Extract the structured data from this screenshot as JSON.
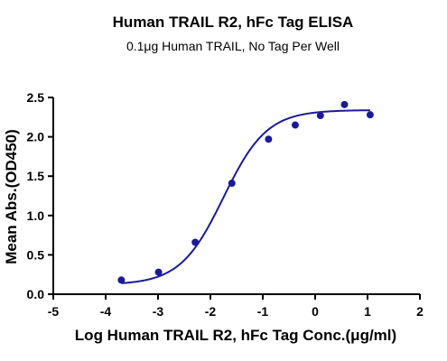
{
  "chart_data": {
    "type": "scatter",
    "title": "Human TRAIL R2, hFc Tag ELISA",
    "subtitle": "0.1μg Human TRAIL, No Tag Per Well",
    "xlabel": "Log Human TRAIL R2, hFc Tag Conc.(μg/ml)",
    "ylabel": "Mean Abs.(OD450)",
    "xlim": [
      -5,
      2
    ],
    "ylim": [
      0,
      2.5
    ],
    "xticks": [
      "-5",
      "-4",
      "-3",
      "-2",
      "-1",
      "0",
      "1",
      "2"
    ],
    "yticks": [
      "0.0",
      "0.5",
      "1.0",
      "1.5",
      "2.0",
      "2.5"
    ],
    "grid": false,
    "series": [
      {
        "color": "#1a1a99",
        "x": [
          -3.7,
          -2.99,
          -2.29,
          -1.59,
          -0.89,
          -0.38,
          0.1,
          0.56,
          1.05
        ],
        "y": [
          0.18,
          0.28,
          0.66,
          1.41,
          1.97,
          2.15,
          2.27,
          2.41,
          2.28
        ]
      }
    ],
    "fit_curve": {
      "model": "4PL",
      "bottom": 0.12,
      "top": 2.34,
      "logEC50": -1.75,
      "hill": 1.05,
      "x_range": [
        -3.7,
        1.05
      ],
      "color": "#1a1a99"
    }
  }
}
